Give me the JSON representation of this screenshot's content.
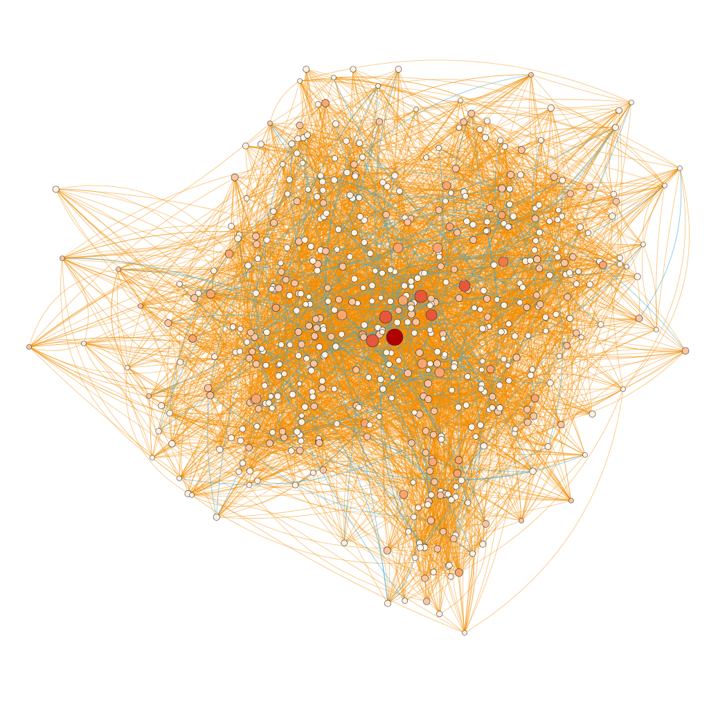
{
  "graph": {
    "style": {
      "background": "#ffffff",
      "edge_color_primary": "#f28c00",
      "edge_color_secondary": "#3aa9d8",
      "node_stroke": "#333333",
      "node_fill_low": "#fff1e2",
      "node_fill_mid": "#f9a66e",
      "node_fill_high": "#e8573a",
      "node_fill_max": "#b00000"
    }
  }
}
